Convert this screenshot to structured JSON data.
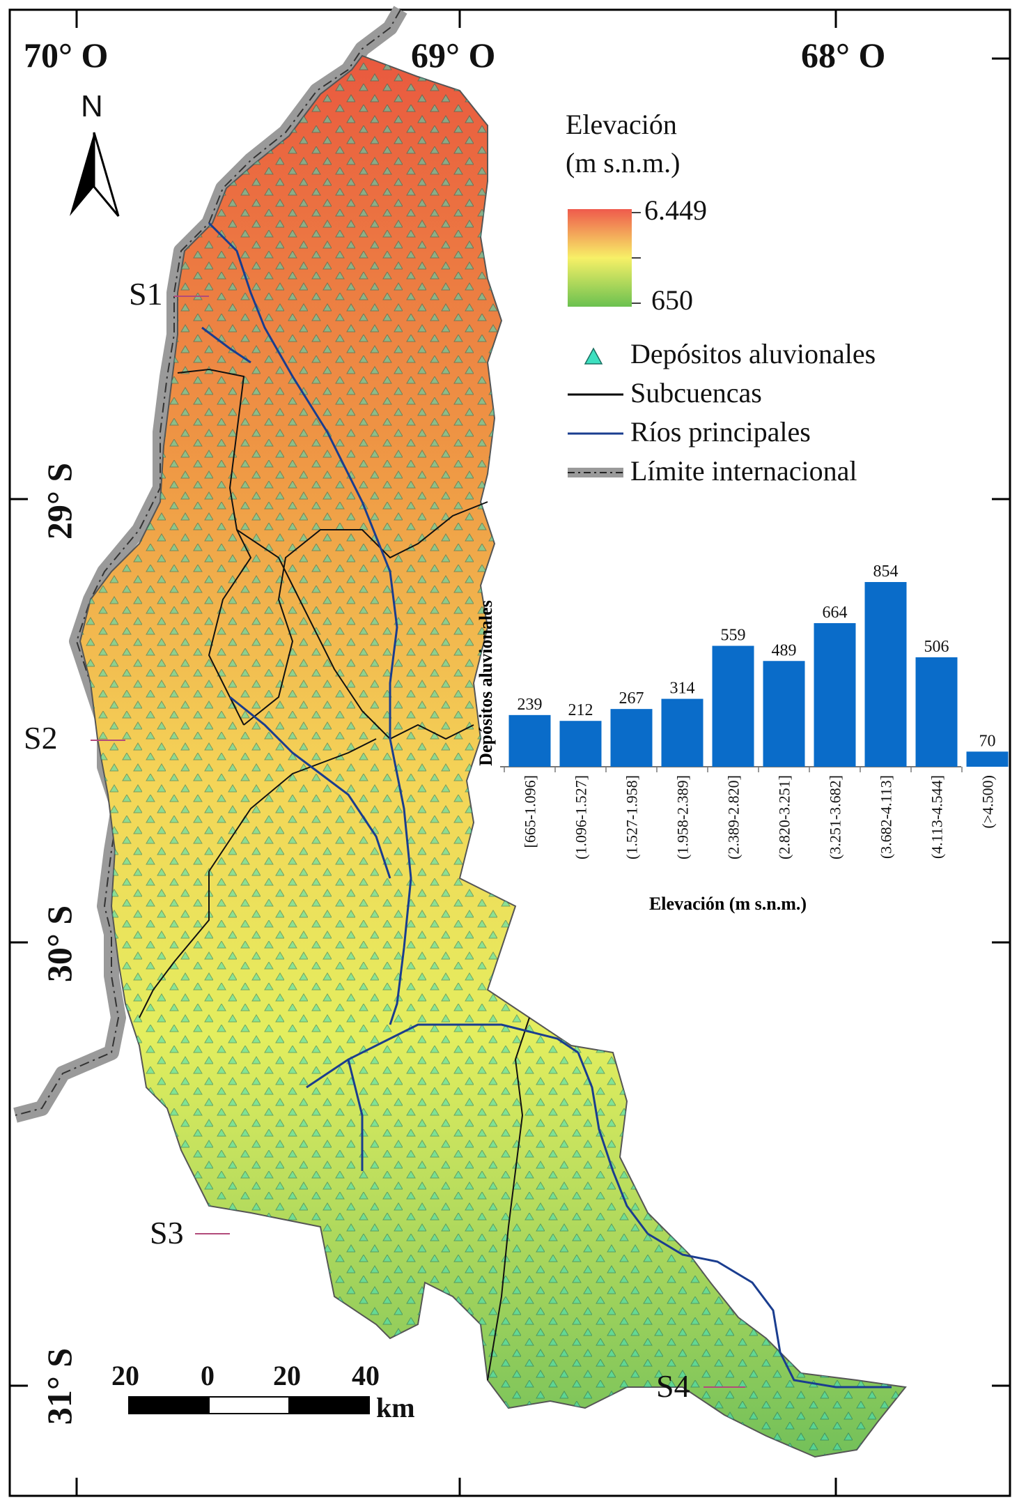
{
  "coordinates": {
    "lon_labels": [
      "70° O",
      "69° O",
      "68° O"
    ],
    "lat_labels": [
      "29° S",
      "30° S",
      "31° S"
    ]
  },
  "north_arrow": {
    "label": "N",
    "icon": "north-arrow-icon"
  },
  "subbasin_sites": [
    "S1",
    "S2",
    "S3",
    "S4"
  ],
  "legend": {
    "elevation_title_line1": "Elevación",
    "elevation_title_line2": "(m s.n.m.)",
    "elevation_max": "6.449",
    "elevation_min": "650",
    "items": [
      {
        "label": "Depósitos aluvionales",
        "icon": "triangle-icon",
        "color": "#3de0c0"
      },
      {
        "label": "Subcuencas",
        "icon": "black-line-icon",
        "color": "#000000"
      },
      {
        "label": "Ríos principales",
        "icon": "blue-line-icon",
        "color": "#1a3d8f"
      },
      {
        "label": "Límite internacional",
        "icon": "border-line-icon",
        "color": "#9a9a9a"
      }
    ]
  },
  "scale_bar": {
    "labels": [
      "20",
      "0",
      "20",
      "40"
    ],
    "unit": "km"
  },
  "colors": {
    "high": "#e8544a",
    "mid": "#f5e86a",
    "low": "#6fbf4e",
    "deposit": "#3de0c0",
    "bar": "#0a6cc9",
    "river": "#1a3d8f"
  },
  "chart_data": {
    "type": "bar",
    "ylabel": "Depósitos aluvionales",
    "xlabel": "Elevación (m s.n.m.)",
    "categories": [
      "[665-1.096]",
      "(1.096-1.527]",
      "(1.527-1.958]",
      "(1.958-2.389]",
      "(2.389-2.820]",
      "(2.820-3.251]",
      "(3.251-3.682]",
      "(3.682-4.113]",
      "(4.113-4.544]",
      "(>4.500)"
    ],
    "values": [
      239,
      212,
      267,
      314,
      559,
      489,
      664,
      854,
      506,
      70
    ],
    "ylim": [
      0,
      900
    ]
  }
}
